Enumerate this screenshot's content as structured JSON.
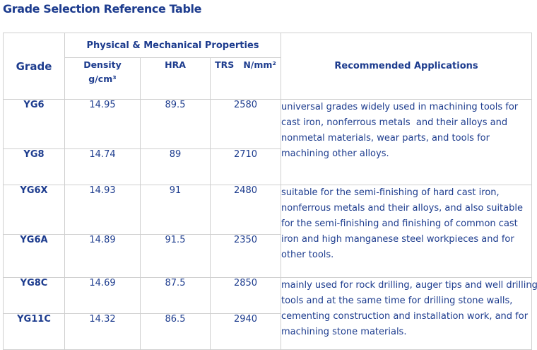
{
  "page": {
    "title": "Grade Selection Reference Table"
  },
  "table": {
    "header": {
      "grade": "Grade",
      "properties_group": "Physical & Mechanical Properties",
      "applications": "Recommended Applications",
      "density_line1": "Density",
      "density_line2": "g/cm³",
      "hra": "HRA",
      "trs": "TRS   N/mm²"
    },
    "rows": [
      {
        "grade": "YG6",
        "density": "14.95",
        "hra": "89.5",
        "trs": "2580"
      },
      {
        "grade": "YG8",
        "density": "14.74",
        "hra": "89",
        "trs": "2710"
      },
      {
        "grade": "YG6X",
        "density": "14.93",
        "hra": "91",
        "trs": "2480"
      },
      {
        "grade": "YG6A",
        "density": "14.89",
        "hra": "91.5",
        "trs": "2350"
      },
      {
        "grade": "YG8C",
        "density": "14.69",
        "hra": "87.5",
        "trs": "2850"
      },
      {
        "grade": "YG11C",
        "density": "14.32",
        "hra": "86.5",
        "trs": "2940"
      }
    ],
    "applications": [
      {
        "lines": [
          "universal grades widely used in machining tools for",
          "cast iron, nonferrous metals  and their alloys and",
          "nonmetal materials, wear parts, and tools for",
          "machining other alloys."
        ]
      },
      {
        "lines": [
          "suitable for the semi-finishing of hard cast iron,",
          "nonferrous metals and their alloys, and also suitable",
          "for the semi-finishing and finishing of common cast",
          "iron and high manganese steel workpieces and for",
          "other tools."
        ]
      },
      {
        "lines": [
          "mainly used for rock drilling, auger tips and well drilling",
          "tools and at the same time for drilling stone walls,",
          "cementing construction and installation work, and for",
          "machining stone materials."
        ]
      }
    ],
    "colors": {
      "text": "#1d3c8e",
      "border": "#cfcfcf"
    }
  }
}
